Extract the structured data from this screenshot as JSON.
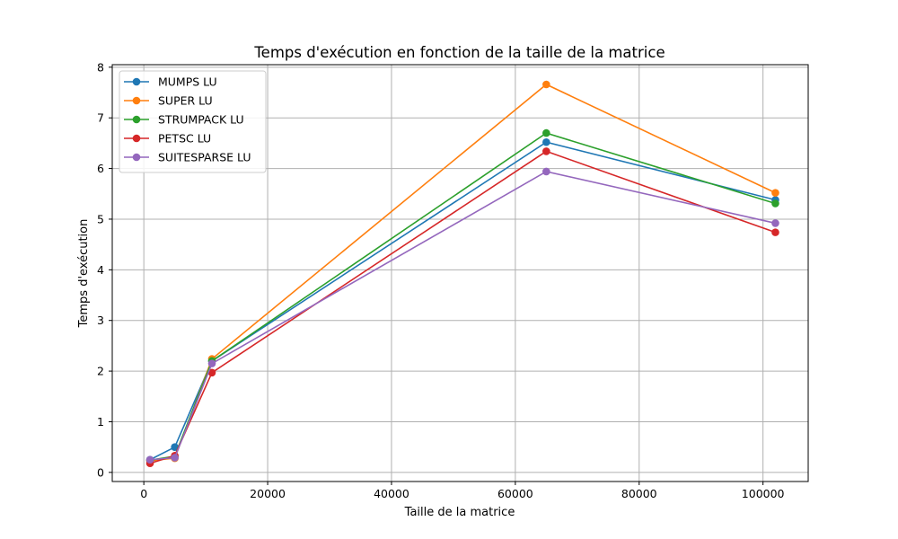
{
  "chart_data": {
    "type": "line",
    "title": "Temps d'exécution en fonction de la taille de la matrice",
    "xlabel": "Taille de la matrice",
    "ylabel": "Temps d'exécution",
    "xlim": [
      -5100,
      107300
    ],
    "ylim": [
      -0.18,
      8.05
    ],
    "x_ticks": [
      0,
      20000,
      40000,
      60000,
      80000,
      100000
    ],
    "y_ticks": [
      0,
      1,
      2,
      3,
      4,
      5,
      6,
      7,
      8
    ],
    "grid": true,
    "legend_position": "upper-left",
    "x": [
      1000,
      5000,
      11000,
      65000,
      102000
    ],
    "series": [
      {
        "name": "MUMPS LU",
        "color": "#1f77b4",
        "values": [
          0.25,
          0.5,
          2.2,
          6.52,
          5.38
        ]
      },
      {
        "name": "SUPER LU",
        "color": "#ff7f0e",
        "values": [
          0.23,
          0.28,
          2.24,
          7.66,
          5.52
        ]
      },
      {
        "name": "STRUMPACK LU",
        "color": "#2ca02c",
        "values": [
          0.24,
          0.32,
          2.2,
          6.7,
          5.31
        ]
      },
      {
        "name": "PETSC LU",
        "color": "#d62728",
        "values": [
          0.18,
          0.33,
          1.97,
          6.34,
          4.74
        ]
      },
      {
        "name": "SUITESPARSE LU",
        "color": "#9467bd",
        "values": [
          0.25,
          0.29,
          2.15,
          5.94,
          4.92
        ]
      }
    ]
  }
}
